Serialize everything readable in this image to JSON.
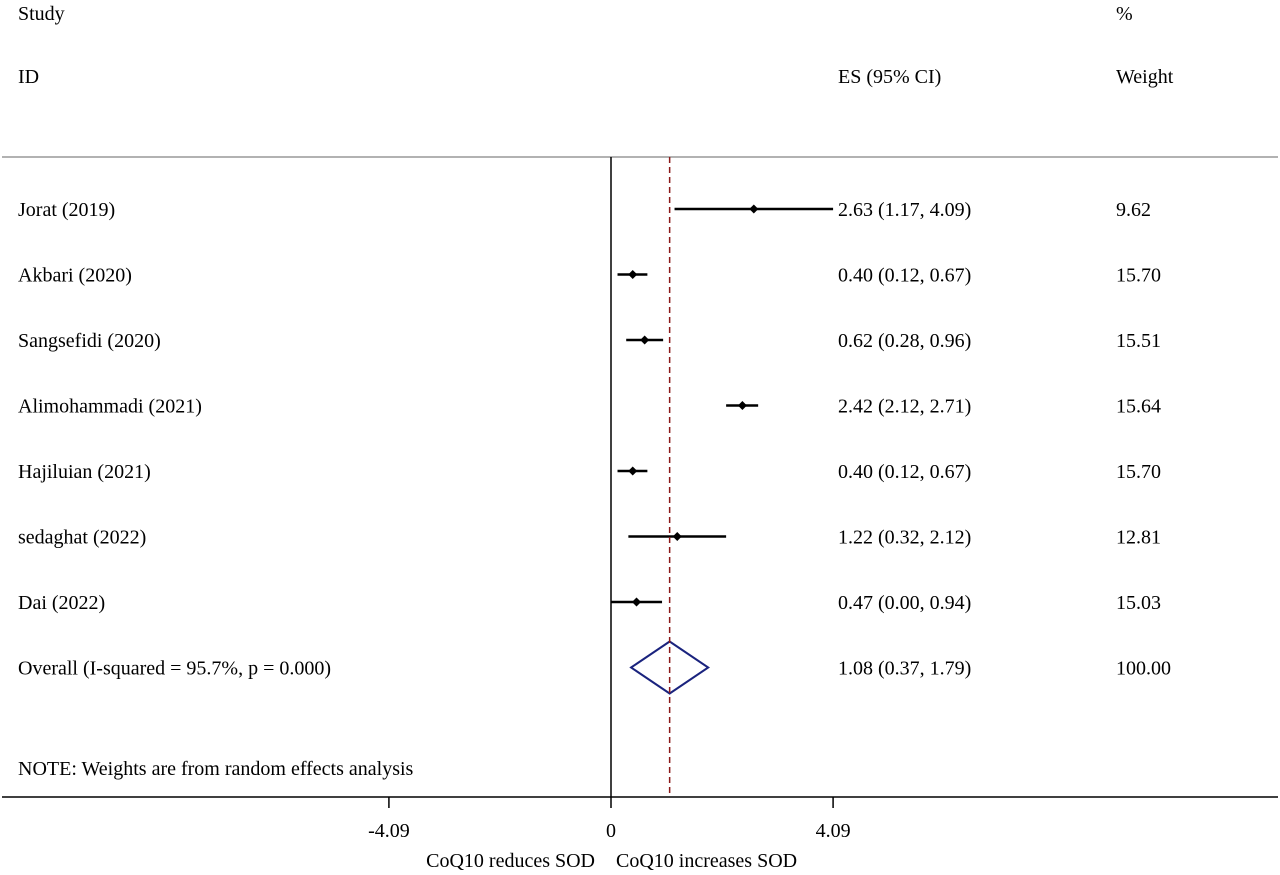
{
  "header": {
    "col1_top": "Study",
    "col1_bottom": "ID",
    "col2": "ES (95% CI)",
    "col3_top": "%",
    "col3_bottom": "Weight"
  },
  "note": "NOTE: Weights are from random effects analysis",
  "colors": {
    "line": "#000000",
    "reference_line": "#8b1a1a",
    "diamond": "#1a237e"
  },
  "chart_data": {
    "type": "forest",
    "x_axis": {
      "range": [
        -4.09,
        4.09
      ],
      "ticks": [
        -4.09,
        0,
        4.09
      ],
      "tick_labels": [
        "-4.09",
        "0",
        "4.09"
      ],
      "left_label": "CoQ10 reduces SOD",
      "right_label": "CoQ10 increases SOD"
    },
    "null_line": 0,
    "overall_line": 1.08,
    "studies": [
      {
        "label": "Jorat (2019)",
        "es": 2.63,
        "lower": 1.17,
        "upper": 4.09,
        "es_text": "2.63 (1.17, 4.09)",
        "weight": 9.62,
        "weight_text": "9.62"
      },
      {
        "label": "Akbari (2020)",
        "es": 0.4,
        "lower": 0.12,
        "upper": 0.67,
        "es_text": "0.40 (0.12, 0.67)",
        "weight": 15.7,
        "weight_text": "15.70"
      },
      {
        "label": "Sangsefidi (2020)",
        "es": 0.62,
        "lower": 0.28,
        "upper": 0.96,
        "es_text": "0.62 (0.28, 0.96)",
        "weight": 15.51,
        "weight_text": "15.51"
      },
      {
        "label": "Alimohammadi (2021)",
        "es": 2.42,
        "lower": 2.12,
        "upper": 2.71,
        "es_text": "2.42 (2.12, 2.71)",
        "weight": 15.64,
        "weight_text": "15.64"
      },
      {
        "label": "Hajiluian (2021)",
        "es": 0.4,
        "lower": 0.12,
        "upper": 0.67,
        "es_text": "0.40 (0.12, 0.67)",
        "weight": 15.7,
        "weight_text": "15.70"
      },
      {
        "label": "sedaghat (2022)",
        "es": 1.22,
        "lower": 0.32,
        "upper": 2.12,
        "es_text": "1.22 (0.32, 2.12)",
        "weight": 12.81,
        "weight_text": "12.81"
      },
      {
        "label": "Dai (2022)",
        "es": 0.47,
        "lower": 0.0,
        "upper": 0.94,
        "es_text": "0.47 (0.00, 0.94)",
        "weight": 15.03,
        "weight_text": "15.03"
      }
    ],
    "overall": {
      "label": "Overall  (I-squared = 95.7%, p = 0.000)",
      "es": 1.08,
      "lower": 0.37,
      "upper": 1.79,
      "es_text": "1.08 (0.37, 1.79)",
      "weight": 100.0,
      "weight_text": "100.00"
    }
  }
}
